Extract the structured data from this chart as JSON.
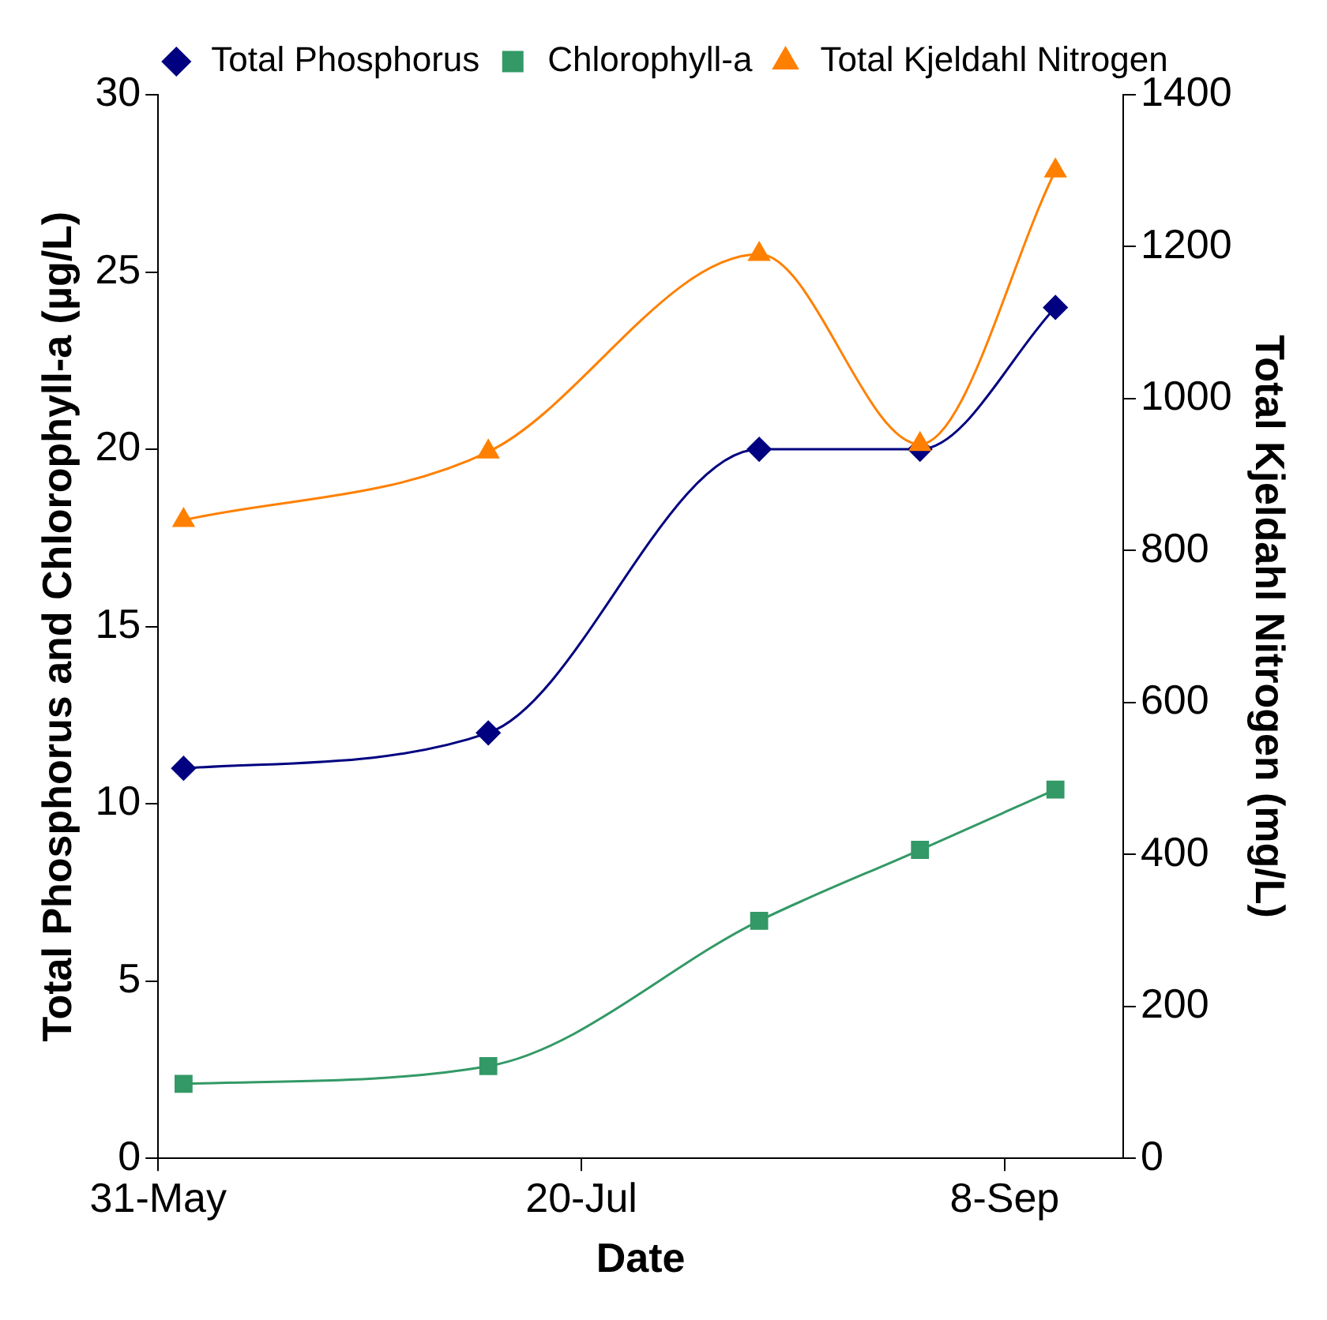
{
  "chart_data": {
    "type": "line",
    "xlabel": "Date",
    "ylabel": "Total Phosphorus and Chlorophyll-a (µg/L)",
    "y2label": "Total Kjeldahl Nitrogen (mg/L)",
    "x": [
      "--06-03",
      "--07-09",
      "--08-10",
      "--08-29",
      "--09-14"
    ],
    "xlim": [
      "--05-31",
      "--09-22"
    ],
    "xticks": [
      {
        "value": "--05-31",
        "label": "31-May"
      },
      {
        "value": "--07-20",
        "label": "20-Jul"
      },
      {
        "value": "--09-08",
        "label": "8-Sep"
      }
    ],
    "ylim": [
      0,
      30
    ],
    "yticks": [
      0,
      5,
      10,
      15,
      20,
      25,
      30
    ],
    "y2lim": [
      0,
      1400
    ],
    "y2ticks": [
      0,
      200,
      400,
      600,
      800,
      1000,
      1200,
      1400
    ],
    "grid": false,
    "legend": "top",
    "series": [
      {
        "name": "Total Phosphorus",
        "color": "#000080",
        "marker": "diamond",
        "values": [
          11,
          12,
          20,
          20,
          24
        ]
      },
      {
        "name": "Chlorophyll-a",
        "color": "#339966",
        "marker": "square",
        "values": [
          2.1,
          2.6,
          6.7,
          8.7,
          10.4
        ]
      },
      {
        "name": "Total Kjeldahl Nitrogen",
        "color": "#ff8000",
        "marker": "triangle",
        "axis": "y2",
        "values": [
          840,
          930,
          1190,
          940,
          1300
        ]
      }
    ]
  }
}
